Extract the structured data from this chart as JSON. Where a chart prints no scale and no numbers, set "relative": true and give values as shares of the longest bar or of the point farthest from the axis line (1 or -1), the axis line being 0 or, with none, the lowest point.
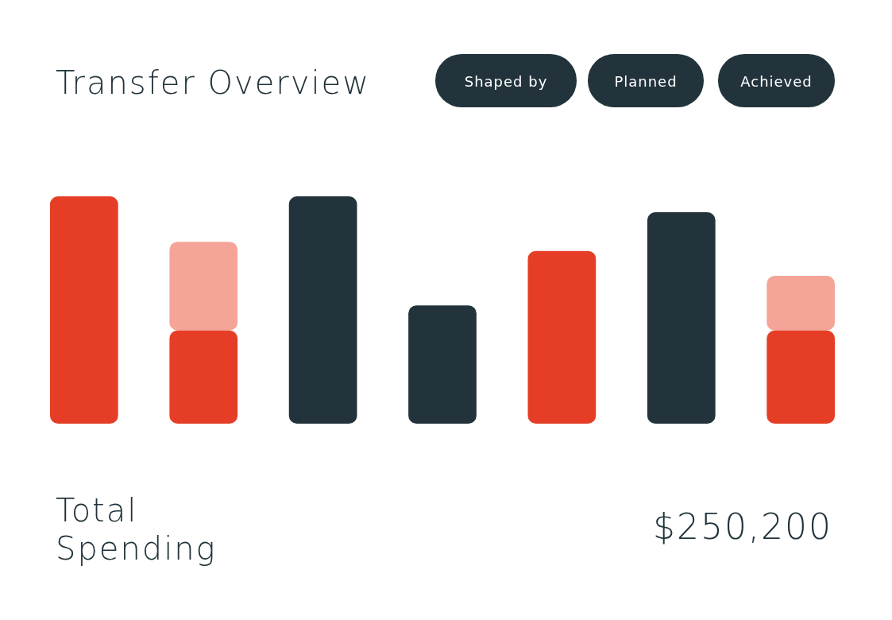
{
  "chart_data": {
    "type": "bar",
    "title": "Transfer Overview",
    "relative": true,
    "stacked": true,
    "categories": [
      null,
      null,
      null,
      null,
      null,
      null,
      null
    ],
    "series": [
      {
        "colors": [
          "#e63e26",
          "#e63e26",
          "#22333b",
          "#22333b",
          "#e63e26",
          "#22333b",
          "#e63e26"
        ],
        "values": [
          1,
          0.41,
          1,
          0.52,
          0.76,
          0.93,
          0.41
        ]
      },
      {
        "color": "#f4a598",
        "values": [
          null,
          0.39,
          null,
          null,
          null,
          null,
          0.24
        ]
      }
    ],
    "annotations": [
      "Shaped by",
      "Planned",
      "Achieved",
      "Total Spending",
      "$250,200"
    ]
  }
}
